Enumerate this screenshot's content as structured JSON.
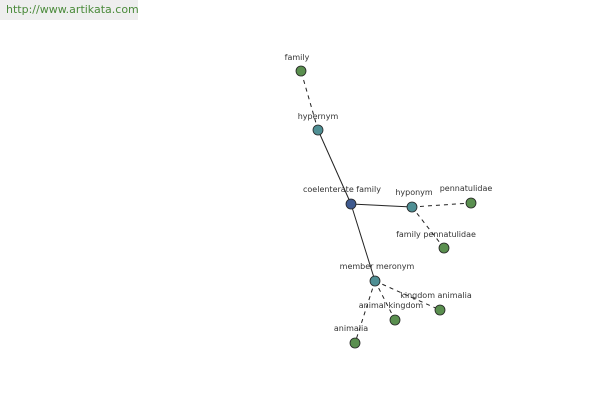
{
  "header": {
    "url": "http://www.artikata.com"
  },
  "nodes": [
    {
      "label": "coelenterate family"
    },
    {
      "label": "hypernym"
    },
    {
      "label": "hyponym"
    },
    {
      "label": "member meronym"
    },
    {
      "label": "family"
    },
    {
      "label": "pennatulidae"
    },
    {
      "label": "family pennatulidae"
    },
    {
      "label": "kingdom animalia"
    },
    {
      "label": "animal kingdom"
    },
    {
      "label": "animalia"
    }
  ]
}
